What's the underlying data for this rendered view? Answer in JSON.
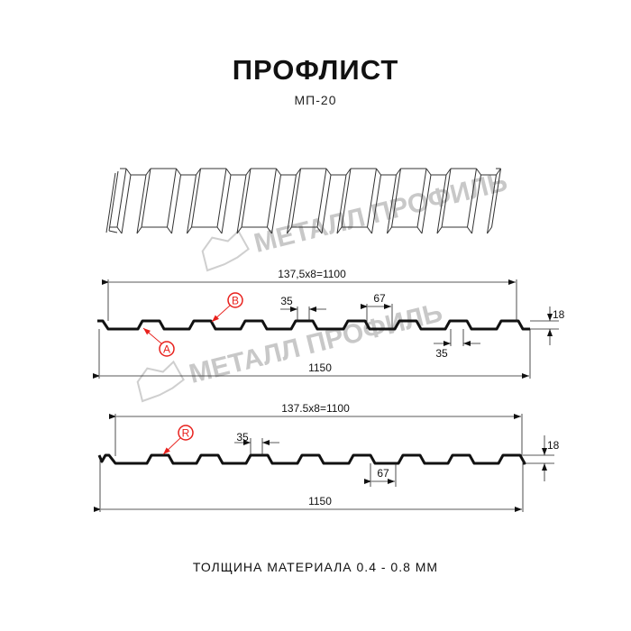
{
  "title": "ПРОФЛИСТ",
  "subtitle": "МП-20",
  "footer": "ТОЛЩИНА МАТЕРИАЛА 0.4 - 0.8 ММ",
  "watermark": "МЕТАЛЛ ПРОФИЛЬ",
  "colors": {
    "profile": "#111111",
    "callout": "#e8201c",
    "watermark": "#c8c8c8"
  },
  "profile_top": {
    "pitch_label": "137,5x8=1100",
    "total_width": "1150",
    "crest_width": "35",
    "trough_gap": "67",
    "bottom_width": "35",
    "height": "18",
    "callouts": [
      "B",
      "A"
    ]
  },
  "profile_bottom": {
    "pitch_label": "137.5x8=1100",
    "total_width": "1150",
    "crest_width": "35",
    "trough_gap": "67",
    "height": "18",
    "callouts": [
      "R"
    ]
  }
}
